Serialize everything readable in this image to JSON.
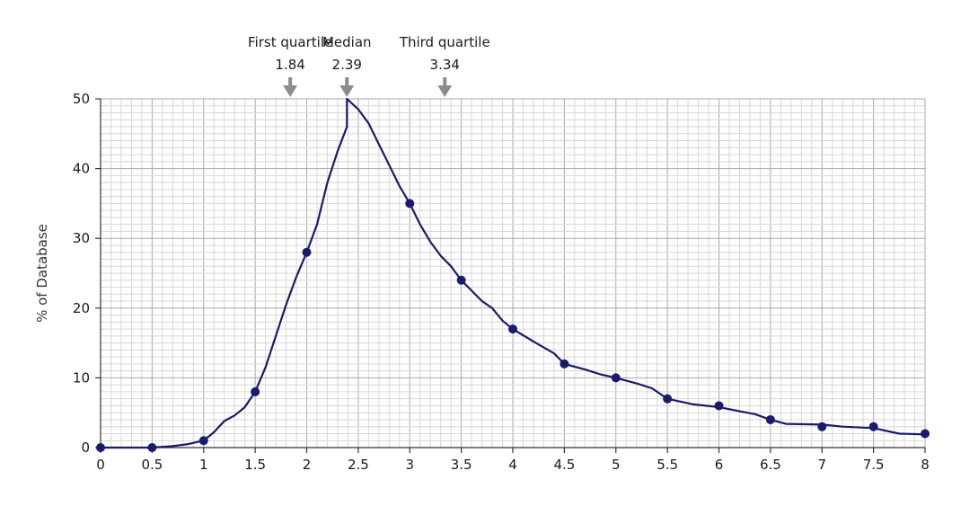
{
  "chart_data": {
    "type": "line",
    "title": "",
    "xlabel": "",
    "ylabel": "% of Database",
    "xlim": [
      0,
      8
    ],
    "ylim": [
      0,
      50
    ],
    "x_ticks": [
      "0",
      "0.5",
      "1",
      "1.5",
      "2",
      "2.5",
      "3",
      "3.5",
      "4",
      "4.5",
      "5",
      "5.5",
      "6",
      "6.5",
      "7",
      "7.5",
      "8"
    ],
    "y_ticks": [
      "0",
      "10",
      "20",
      "30",
      "40",
      "50"
    ],
    "grid": true,
    "series_color": "#1a1a6e",
    "curve": [
      [
        0,
        0
      ],
      [
        0.5,
        0
      ],
      [
        0.7,
        0.2
      ],
      [
        0.85,
        0.5
      ],
      [
        1.0,
        1.0
      ],
      [
        1.1,
        2.2
      ],
      [
        1.2,
        3.8
      ],
      [
        1.3,
        4.6
      ],
      [
        1.4,
        5.8
      ],
      [
        1.5,
        8.0
      ],
      [
        1.6,
        11.5
      ],
      [
        1.7,
        16.0
      ],
      [
        1.8,
        20.5
      ],
      [
        1.9,
        24.5
      ],
      [
        2.0,
        28.0
      ],
      [
        2.1,
        32.0
      ],
      [
        2.2,
        38.0
      ],
      [
        2.3,
        42.5
      ],
      [
        2.39,
        46.0
      ],
      [
        2.39,
        50.0
      ],
      [
        2.5,
        48.5
      ],
      [
        2.6,
        46.5
      ],
      [
        2.7,
        43.5
      ],
      [
        2.8,
        40.5
      ],
      [
        2.9,
        37.5
      ],
      [
        3.0,
        35.0
      ],
      [
        3.1,
        32.0
      ],
      [
        3.2,
        29.5
      ],
      [
        3.3,
        27.5
      ],
      [
        3.4,
        26.0
      ],
      [
        3.5,
        24.0
      ],
      [
        3.6,
        22.5
      ],
      [
        3.7,
        21.0
      ],
      [
        3.8,
        20.0
      ],
      [
        3.9,
        18.2
      ],
      [
        4.0,
        17.0
      ],
      [
        4.2,
        15.2
      ],
      [
        4.4,
        13.5
      ],
      [
        4.5,
        12.0
      ],
      [
        4.7,
        11.2
      ],
      [
        4.85,
        10.5
      ],
      [
        5.0,
        10.0
      ],
      [
        5.2,
        9.2
      ],
      [
        5.35,
        8.5
      ],
      [
        5.5,
        7.0
      ],
      [
        5.75,
        6.2
      ],
      [
        6.0,
        5.8
      ],
      [
        6.2,
        5.2
      ],
      [
        6.35,
        4.8
      ],
      [
        6.5,
        4.0
      ],
      [
        6.65,
        3.4
      ],
      [
        7.0,
        3.3
      ],
      [
        7.2,
        3.0
      ],
      [
        7.5,
        2.8
      ],
      [
        7.75,
        2.0
      ],
      [
        8.0,
        1.9
      ]
    ],
    "markers": [
      [
        0,
        0
      ],
      [
        0.5,
        0
      ],
      [
        1,
        1
      ],
      [
        1.5,
        8
      ],
      [
        2,
        28
      ],
      [
        3,
        35
      ],
      [
        3.5,
        24
      ],
      [
        4,
        17
      ],
      [
        4.5,
        12
      ],
      [
        5,
        10
      ],
      [
        5.5,
        7
      ],
      [
        6,
        6
      ],
      [
        6.5,
        4
      ],
      [
        7,
        3
      ],
      [
        7.5,
        3
      ],
      [
        8,
        2
      ]
    ],
    "marker_color": "#1a1a6e",
    "annotations": [
      {
        "label": "First quartile",
        "value_label": "1.84",
        "x": 1.84
      },
      {
        "label": "Median",
        "value_label": "2.39",
        "x": 2.39
      },
      {
        "label": "Third quartile",
        "value_label": "3.34",
        "x": 3.34
      }
    ],
    "arrow_color": "#8c8c8c"
  }
}
